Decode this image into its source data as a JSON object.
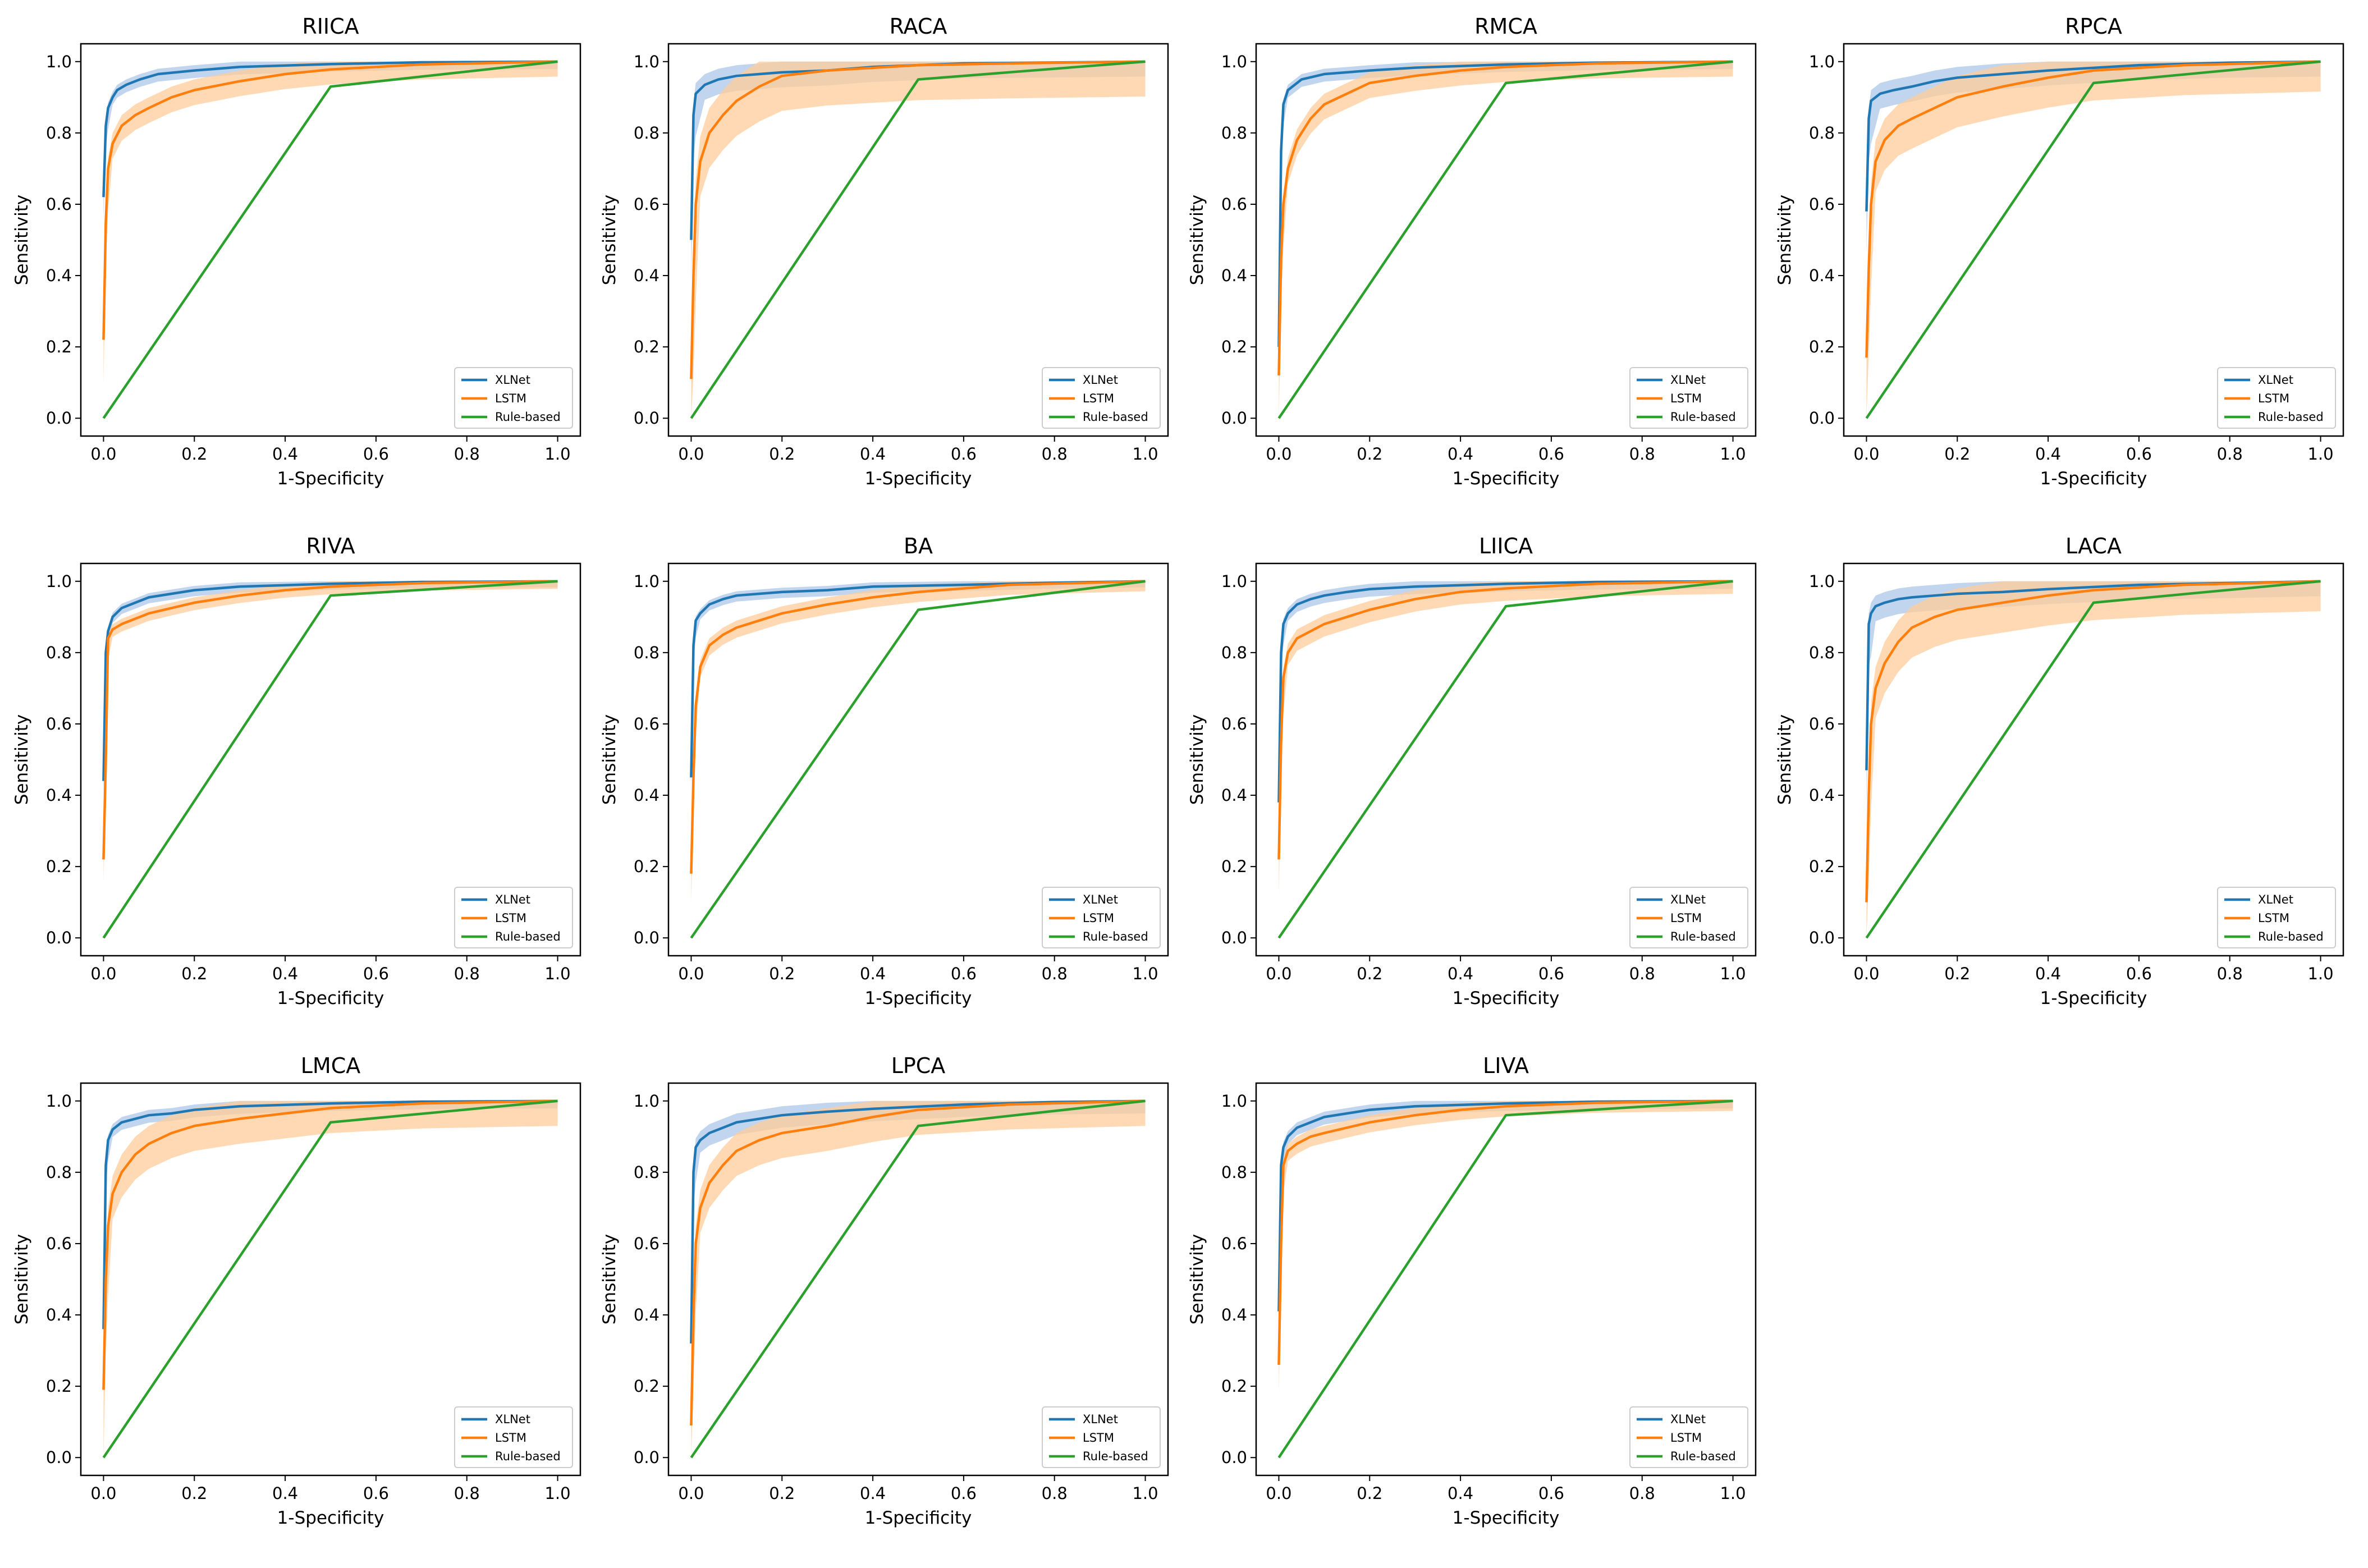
{
  "chart_data": {
    "type": "line",
    "layout": "3x4 grid of ROC curves (11 panels)",
    "shared": {
      "xlabel": "1-Specificity",
      "ylabel": "Sensitivity",
      "xlim": [
        -0.05,
        1.05
      ],
      "ylim": [
        -0.05,
        1.05
      ],
      "xticks": [
        0.0,
        0.2,
        0.4,
        0.6,
        0.8,
        1.0
      ],
      "yticks": [
        0.0,
        0.2,
        0.4,
        0.6,
        0.8,
        1.0
      ],
      "xtick_labels": [
        "0.0",
        "0.2",
        "0.4",
        "0.6",
        "0.8",
        "1.0"
      ],
      "ytick_labels": [
        "0.0",
        "0.2",
        "0.4",
        "0.6",
        "0.8",
        "1.0"
      ],
      "legend": {
        "placement": "lower-right",
        "entries": [
          "XLNet",
          "LSTM",
          "Rule-based"
        ]
      },
      "series_colors": {
        "XLNet": "#1f77b4",
        "LSTM": "#ff7f0e",
        "Rule-based": "#2ca02c"
      },
      "band_colors": {
        "XLNet": "#aec7e8",
        "LSTM": "#ffcc99"
      },
      "grid": false
    },
    "panels": [
      {
        "title": "RIICA",
        "series": [
          {
            "name": "XLNet",
            "x": [
              0,
              0.005,
              0.01,
              0.02,
              0.03,
              0.05,
              0.08,
              0.12,
              0.2,
              0.3,
              0.5,
              0.7,
              1
            ],
            "y": [
              0.62,
              0.82,
              0.87,
              0.9,
              0.92,
              0.935,
              0.95,
              0.965,
              0.975,
              0.985,
              0.993,
              0.998,
              1
            ],
            "band": 0.015
          },
          {
            "name": "LSTM",
            "x": [
              0,
              0.005,
              0.01,
              0.02,
              0.04,
              0.07,
              0.1,
              0.15,
              0.2,
              0.3,
              0.4,
              0.5,
              0.7,
              1
            ],
            "y": [
              0.22,
              0.55,
              0.7,
              0.77,
              0.82,
              0.85,
              0.87,
              0.9,
              0.92,
              0.945,
              0.965,
              0.978,
              0.992,
              1
            ],
            "band": 0.03
          },
          {
            "name": "Rule-based",
            "x": [
              0,
              0.5,
              1
            ],
            "y": [
              0,
              0.93,
              1
            ]
          }
        ]
      },
      {
        "title": "RACA",
        "series": [
          {
            "name": "XLNet",
            "x": [
              0,
              0.005,
              0.01,
              0.03,
              0.06,
              0.1,
              0.15,
              0.2,
              0.3,
              0.4,
              0.6,
              1
            ],
            "y": [
              0.5,
              0.85,
              0.91,
              0.935,
              0.95,
              0.96,
              0.965,
              0.97,
              0.975,
              0.985,
              0.995,
              1
            ],
            "band": 0.03
          },
          {
            "name": "LSTM",
            "x": [
              0,
              0.005,
              0.01,
              0.02,
              0.04,
              0.07,
              0.1,
              0.15,
              0.2,
              0.3,
              0.5,
              0.7,
              1
            ],
            "y": [
              0.11,
              0.4,
              0.6,
              0.72,
              0.8,
              0.85,
              0.89,
              0.93,
              0.96,
              0.975,
              0.99,
              0.995,
              1
            ],
            "band": 0.07
          },
          {
            "name": "Rule-based",
            "x": [
              0,
              0.5,
              1
            ],
            "y": [
              0,
              0.95,
              1
            ]
          }
        ]
      },
      {
        "title": "RMCA",
        "series": [
          {
            "name": "XLNet",
            "x": [
              0,
              0.005,
              0.01,
              0.02,
              0.05,
              0.1,
              0.2,
              0.3,
              0.5,
              0.7,
              1
            ],
            "y": [
              0.2,
              0.75,
              0.88,
              0.92,
              0.95,
              0.965,
              0.975,
              0.983,
              0.992,
              0.997,
              1
            ],
            "band": 0.015
          },
          {
            "name": "LSTM",
            "x": [
              0,
              0.005,
              0.01,
              0.02,
              0.04,
              0.07,
              0.1,
              0.15,
              0.2,
              0.3,
              0.4,
              0.5,
              0.7,
              1
            ],
            "y": [
              0.12,
              0.45,
              0.6,
              0.7,
              0.78,
              0.84,
              0.88,
              0.91,
              0.94,
              0.96,
              0.975,
              0.985,
              0.995,
              1
            ],
            "band": 0.03
          },
          {
            "name": "Rule-based",
            "x": [
              0,
              0.5,
              1
            ],
            "y": [
              0,
              0.94,
              1
            ]
          }
        ]
      },
      {
        "title": "RPCA",
        "series": [
          {
            "name": "XLNet",
            "x": [
              0,
              0.005,
              0.01,
              0.03,
              0.06,
              0.1,
              0.15,
              0.2,
              0.3,
              0.4,
              0.6,
              0.8,
              1
            ],
            "y": [
              0.58,
              0.84,
              0.89,
              0.91,
              0.92,
              0.93,
              0.945,
              0.955,
              0.965,
              0.975,
              0.99,
              0.997,
              1
            ],
            "band": 0.03
          },
          {
            "name": "LSTM",
            "x": [
              0,
              0.005,
              0.01,
              0.02,
              0.04,
              0.07,
              0.1,
              0.15,
              0.2,
              0.3,
              0.4,
              0.5,
              0.7,
              1
            ],
            "y": [
              0.17,
              0.42,
              0.6,
              0.72,
              0.78,
              0.82,
              0.84,
              0.87,
              0.9,
              0.93,
              0.955,
              0.975,
              0.99,
              1
            ],
            "band": 0.06
          },
          {
            "name": "Rule-based",
            "x": [
              0,
              0.5,
              1
            ],
            "y": [
              0,
              0.94,
              1
            ]
          }
        ]
      },
      {
        "title": "RIVA",
        "series": [
          {
            "name": "XLNet",
            "x": [
              0,
              0.005,
              0.01,
              0.02,
              0.04,
              0.07,
              0.1,
              0.15,
              0.2,
              0.3,
              0.5,
              0.7,
              1
            ],
            "y": [
              0.44,
              0.8,
              0.86,
              0.9,
              0.925,
              0.94,
              0.955,
              0.965,
              0.975,
              0.985,
              0.993,
              0.998,
              1
            ],
            "band": 0.012
          },
          {
            "name": "LSTM",
            "x": [
              0,
              0.005,
              0.01,
              0.02,
              0.04,
              0.07,
              0.1,
              0.15,
              0.2,
              0.3,
              0.4,
              0.5,
              0.7,
              1
            ],
            "y": [
              0.22,
              0.5,
              0.84,
              0.865,
              0.88,
              0.895,
              0.91,
              0.925,
              0.94,
              0.96,
              0.975,
              0.985,
              0.995,
              1
            ],
            "band": 0.015
          },
          {
            "name": "Rule-based",
            "x": [
              0,
              0.5,
              1
            ],
            "y": [
              0,
              0.96,
              1
            ]
          }
        ]
      },
      {
        "title": "BA",
        "series": [
          {
            "name": "XLNet",
            "x": [
              0,
              0.005,
              0.01,
              0.02,
              0.04,
              0.07,
              0.1,
              0.15,
              0.2,
              0.3,
              0.4,
              0.6,
              0.8,
              1
            ],
            "y": [
              0.45,
              0.82,
              0.89,
              0.91,
              0.935,
              0.95,
              0.96,
              0.965,
              0.97,
              0.975,
              0.985,
              0.99,
              0.996,
              1
            ],
            "band": 0.012
          },
          {
            "name": "LSTM",
            "x": [
              0,
              0.005,
              0.01,
              0.02,
              0.04,
              0.07,
              0.1,
              0.15,
              0.2,
              0.3,
              0.4,
              0.5,
              0.7,
              1
            ],
            "y": [
              0.18,
              0.45,
              0.65,
              0.76,
              0.82,
              0.85,
              0.87,
              0.89,
              0.91,
              0.935,
              0.955,
              0.97,
              0.99,
              1
            ],
            "band": 0.02
          },
          {
            "name": "Rule-based",
            "x": [
              0,
              0.5,
              1
            ],
            "y": [
              0,
              0.92,
              1
            ]
          }
        ]
      },
      {
        "title": "LIICA",
        "series": [
          {
            "name": "XLNet",
            "x": [
              0,
              0.005,
              0.01,
              0.02,
              0.04,
              0.07,
              0.1,
              0.15,
              0.2,
              0.3,
              0.5,
              0.7,
              1
            ],
            "y": [
              0.38,
              0.8,
              0.88,
              0.91,
              0.935,
              0.95,
              0.96,
              0.97,
              0.978,
              0.985,
              0.993,
              0.998,
              1
            ],
            "band": 0.015
          },
          {
            "name": "LSTM",
            "x": [
              0,
              0.005,
              0.01,
              0.02,
              0.04,
              0.07,
              0.1,
              0.15,
              0.2,
              0.3,
              0.4,
              0.5,
              0.7,
              1
            ],
            "y": [
              0.22,
              0.55,
              0.73,
              0.8,
              0.84,
              0.86,
              0.88,
              0.9,
              0.92,
              0.95,
              0.97,
              0.98,
              0.993,
              1
            ],
            "band": 0.025
          },
          {
            "name": "Rule-based",
            "x": [
              0,
              0.5,
              1
            ],
            "y": [
              0,
              0.93,
              1
            ]
          }
        ]
      },
      {
        "title": "LACA",
        "series": [
          {
            "name": "XLNet",
            "x": [
              0,
              0.005,
              0.01,
              0.02,
              0.04,
              0.07,
              0.1,
              0.15,
              0.2,
              0.3,
              0.4,
              0.6,
              1
            ],
            "y": [
              0.47,
              0.88,
              0.91,
              0.93,
              0.94,
              0.95,
              0.955,
              0.96,
              0.965,
              0.97,
              0.978,
              0.99,
              1
            ],
            "band": 0.03
          },
          {
            "name": "LSTM",
            "x": [
              0,
              0.005,
              0.01,
              0.02,
              0.04,
              0.07,
              0.1,
              0.15,
              0.2,
              0.3,
              0.4,
              0.5,
              0.7,
              1
            ],
            "y": [
              0.1,
              0.4,
              0.6,
              0.7,
              0.77,
              0.83,
              0.87,
              0.9,
              0.92,
              0.94,
              0.96,
              0.975,
              0.99,
              1
            ],
            "band": 0.06
          },
          {
            "name": "Rule-based",
            "x": [
              0,
              0.5,
              1
            ],
            "y": [
              0,
              0.94,
              1
            ]
          }
        ]
      },
      {
        "title": "LMCA",
        "series": [
          {
            "name": "XLNet",
            "x": [
              0,
              0.005,
              0.01,
              0.02,
              0.04,
              0.07,
              0.1,
              0.15,
              0.2,
              0.3,
              0.5,
              0.7,
              1
            ],
            "y": [
              0.36,
              0.82,
              0.89,
              0.92,
              0.94,
              0.95,
              0.96,
              0.965,
              0.975,
              0.985,
              0.993,
              0.998,
              1
            ],
            "band": 0.015
          },
          {
            "name": "LSTM",
            "x": [
              0,
              0.005,
              0.01,
              0.02,
              0.04,
              0.07,
              0.1,
              0.15,
              0.2,
              0.3,
              0.4,
              0.5,
              0.7,
              1
            ],
            "y": [
              0.19,
              0.5,
              0.65,
              0.74,
              0.8,
              0.85,
              0.88,
              0.91,
              0.93,
              0.95,
              0.965,
              0.98,
              0.993,
              1
            ],
            "band": 0.05
          },
          {
            "name": "Rule-based",
            "x": [
              0,
              0.5,
              1
            ],
            "y": [
              0,
              0.94,
              1
            ]
          }
        ]
      },
      {
        "title": "LPCA",
        "series": [
          {
            "name": "XLNet",
            "x": [
              0,
              0.005,
              0.01,
              0.02,
              0.04,
              0.07,
              0.1,
              0.15,
              0.2,
              0.3,
              0.4,
              0.6,
              0.8,
              1
            ],
            "y": [
              0.32,
              0.8,
              0.87,
              0.89,
              0.91,
              0.925,
              0.94,
              0.95,
              0.96,
              0.97,
              0.978,
              0.99,
              0.997,
              1
            ],
            "band": 0.025
          },
          {
            "name": "LSTM",
            "x": [
              0,
              0.005,
              0.01,
              0.02,
              0.04,
              0.07,
              0.1,
              0.15,
              0.2,
              0.3,
              0.4,
              0.5,
              0.7,
              1
            ],
            "y": [
              0.09,
              0.4,
              0.6,
              0.7,
              0.77,
              0.82,
              0.86,
              0.89,
              0.91,
              0.93,
              0.955,
              0.975,
              0.99,
              1
            ],
            "band": 0.05
          },
          {
            "name": "Rule-based",
            "x": [
              0,
              0.5,
              1
            ],
            "y": [
              0,
              0.93,
              1
            ]
          }
        ]
      },
      {
        "title": "LIVA",
        "series": [
          {
            "name": "XLNet",
            "x": [
              0,
              0.005,
              0.01,
              0.02,
              0.04,
              0.07,
              0.1,
              0.15,
              0.2,
              0.3,
              0.5,
              0.7,
              1
            ],
            "y": [
              0.41,
              0.82,
              0.87,
              0.9,
              0.925,
              0.94,
              0.955,
              0.965,
              0.975,
              0.985,
              0.993,
              0.998,
              1
            ],
            "band": 0.015
          },
          {
            "name": "LSTM",
            "x": [
              0,
              0.005,
              0.01,
              0.02,
              0.04,
              0.07,
              0.1,
              0.15,
              0.2,
              0.3,
              0.4,
              0.5,
              0.7,
              1
            ],
            "y": [
              0.26,
              0.6,
              0.82,
              0.86,
              0.88,
              0.9,
              0.91,
              0.925,
              0.94,
              0.96,
              0.975,
              0.985,
              0.995,
              1
            ],
            "band": 0.02
          },
          {
            "name": "Rule-based",
            "x": [
              0,
              0.5,
              1
            ],
            "y": [
              0,
              0.96,
              1
            ]
          }
        ]
      }
    ]
  }
}
